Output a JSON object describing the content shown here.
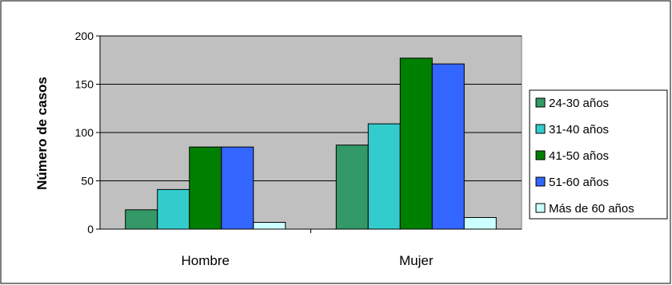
{
  "chart_data": {
    "type": "bar",
    "categories": [
      "Hombre",
      "Mujer"
    ],
    "series": [
      {
        "name": "24-30 años",
        "values": [
          20,
          87
        ],
        "color": "#339966"
      },
      {
        "name": "31-40 años",
        "values": [
          41,
          109
        ],
        "color": "#33CCCC"
      },
      {
        "name": "41-50 años",
        "values": [
          85,
          177
        ],
        "color": "#008000"
      },
      {
        "name": "51-60 años",
        "values": [
          85,
          171
        ],
        "color": "#3366FF"
      },
      {
        "name": "Más de 60 años",
        "values": [
          7,
          12
        ],
        "color": "#CCFFFF"
      }
    ],
    "title": "",
    "xlabel": "",
    "ylabel": "Número de casos",
    "ylim": [
      0,
      200
    ],
    "yticks": [
      0,
      50,
      100,
      150,
      200
    ],
    "grid": true,
    "legend": "right",
    "plot_background": "#C0C0C0"
  }
}
